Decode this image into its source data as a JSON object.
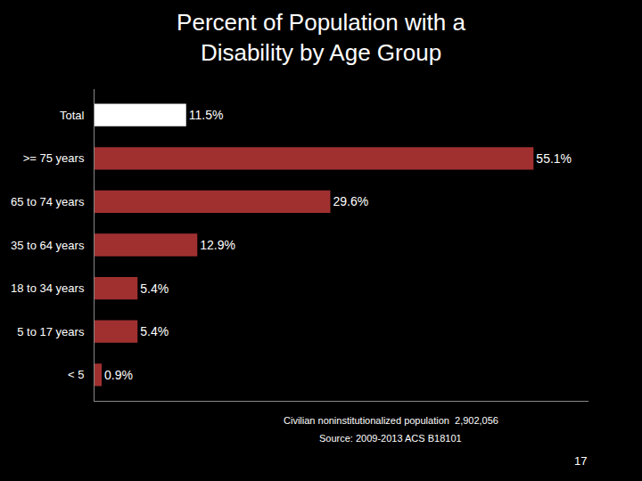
{
  "chart_data": {
    "type": "bar",
    "orientation": "horizontal",
    "title": "Percent of Population with a\nDisability by Age Group",
    "categories": [
      "Total",
      ">= 75 years",
      "65 to 74 years",
      "35 to 64 years",
      "18 to 34 years",
      "5 to 17 years",
      "< 5"
    ],
    "values": [
      11.5,
      55.1,
      29.6,
      12.9,
      5.4,
      5.4,
      0.9
    ],
    "value_labels": [
      "11.5%",
      "55.1%",
      "29.6%",
      "12.9%",
      "5.4%",
      "5.4%",
      "0.9%"
    ],
    "colors": [
      "#ffffff",
      "#a03030",
      "#a03030",
      "#a03030",
      "#a03030",
      "#a03030",
      "#a03030"
    ],
    "xlim": [
      0,
      62
    ],
    "data_labels": true,
    "tick_labels": "y",
    "grid": false,
    "annotations": [
      "Civilian noninstitutionalized population  2,902,056",
      "Source: 2009-2013 ACS B18101",
      "17"
    ]
  }
}
